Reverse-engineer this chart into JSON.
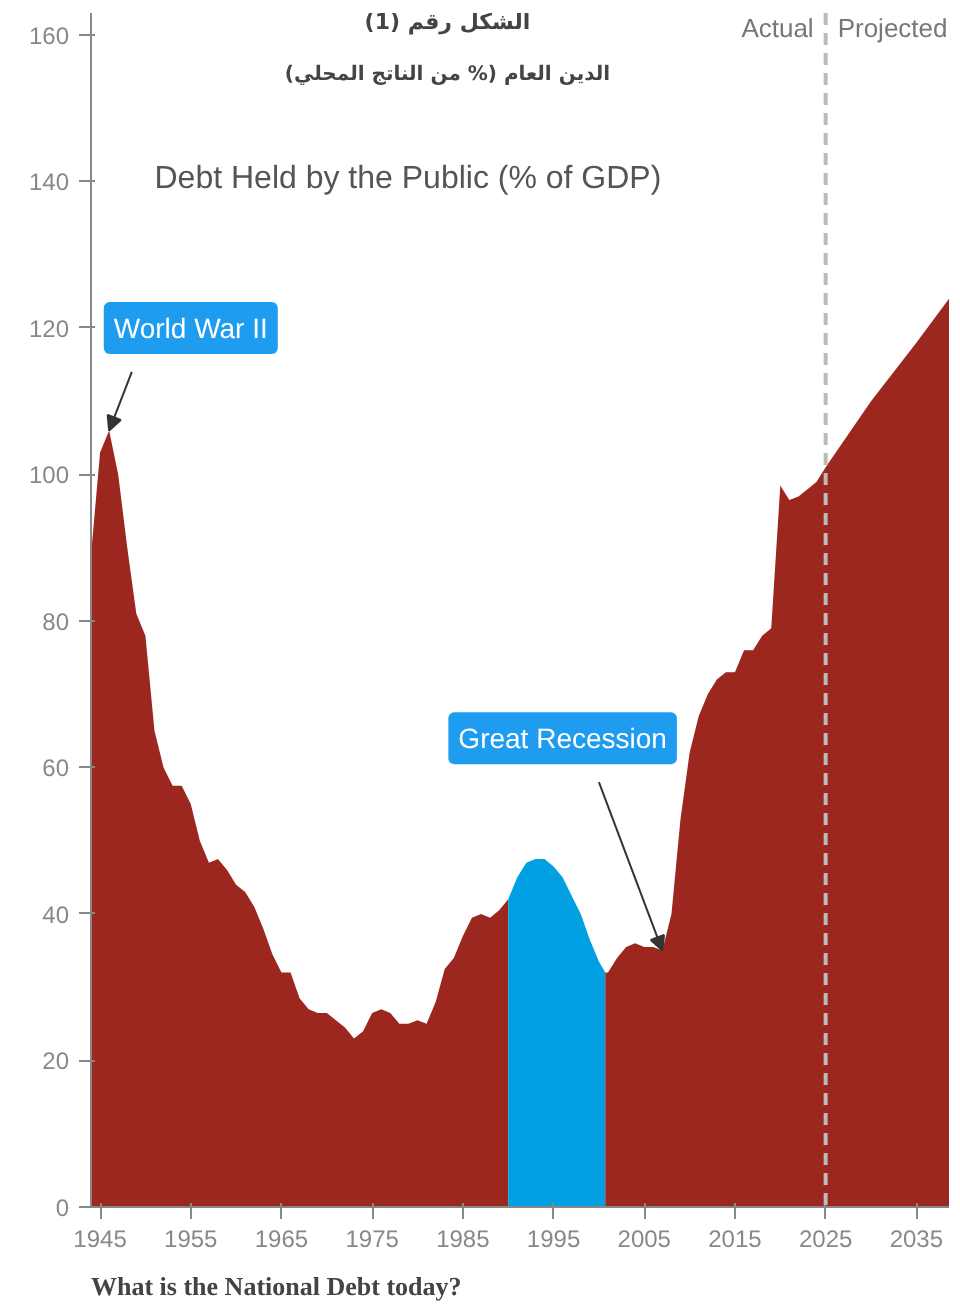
{
  "chart_data": {
    "type": "area",
    "title": "الشكل رقم (1)",
    "subtitle": "الدين العام (% من الناتج المحلي)",
    "x": [
      1944,
      1945,
      1946,
      1947,
      1948,
      1949,
      1950,
      1951,
      1952,
      1953,
      1954,
      1955,
      1956,
      1957,
      1958,
      1959,
      1960,
      1961,
      1962,
      1963,
      1964,
      1965,
      1966,
      1967,
      1968,
      1969,
      1970,
      1971,
      1972,
      1973,
      1974,
      1975,
      1976,
      1977,
      1978,
      1979,
      1980,
      1981,
      1982,
      1983,
      1984,
      1985,
      1986,
      1987,
      1988,
      1989,
      1990
    ],
    "series": [
      {
        "color": "#9b271e",
        "values": [
          89,
          103,
          106,
          100,
          90,
          81,
          78,
          65,
          60,
          57.5,
          57.5,
          55,
          50,
          47,
          47.5,
          46,
          44,
          43,
          41,
          38,
          34.5,
          32,
          32,
          28.5,
          27,
          26.5,
          26.5,
          25.5,
          24.5,
          23,
          24,
          26.5,
          27,
          26.5,
          25,
          25,
          25.5,
          25,
          28,
          32.5,
          34,
          37,
          39.5,
          40,
          39.5,
          40.5,
          42
        ]
      },
      {
        "color": "#00a0e3",
        "x": [
          1990,
          1991,
          1992,
          1993,
          1994,
          1995,
          1996,
          1997,
          1998,
          1999,
          2000,
          2000.7
        ],
        "values": [
          42,
          45,
          47,
          47.5,
          47.5,
          46.5,
          45,
          42.5,
          40,
          36.5,
          33.5,
          32
        ]
      },
      {
        "color": "#9b271e",
        "x": [
          2000.7,
          2001,
          2002,
          2003,
          2004,
          2005,
          2006,
          2007,
          2008,
          2009,
          2010,
          2011,
          2012,
          2013,
          2014,
          2015,
          2016,
          2017,
          2018,
          2019,
          2020,
          2021,
          2022,
          2023,
          2024,
          2025,
          2030,
          2035,
          2038.6
        ],
        "values": [
          32,
          32,
          34,
          35.5,
          36,
          35.5,
          35.5,
          35,
          40,
          53,
          62,
          67,
          70,
          72,
          73,
          73,
          76,
          76,
          78,
          79,
          98.5,
          96.5,
          97,
          98,
          99,
          101,
          110,
          118,
          124
        ]
      }
    ],
    "xlim": [
      1944,
      2038.6
    ],
    "xticks": [
      1945,
      1955,
      1965,
      1975,
      1985,
      1995,
      2005,
      2015,
      2025,
      2035
    ],
    "ylim": [
      0,
      163
    ],
    "yticks": [
      0,
      20,
      40,
      60,
      80,
      100,
      120,
      140,
      160
    ],
    "grid": false,
    "ref_lines": [
      {
        "axis": "x",
        "value": 2025,
        "color": "#bbbbbb",
        "line_style": "dashed"
      }
    ],
    "annotations": [
      {
        "text": "World War II",
        "x": 1946,
        "y": 106
      },
      {
        "text": "Great Recession",
        "x": 2007,
        "y": 35
      },
      {
        "text": "Actual",
        "x": 2025,
        "y": 161
      },
      {
        "text": "Projected",
        "x": 2025,
        "y": 161
      },
      "Debt Held by the Public (% of GDP)",
      "What is the National Debt today?"
    ]
  }
}
